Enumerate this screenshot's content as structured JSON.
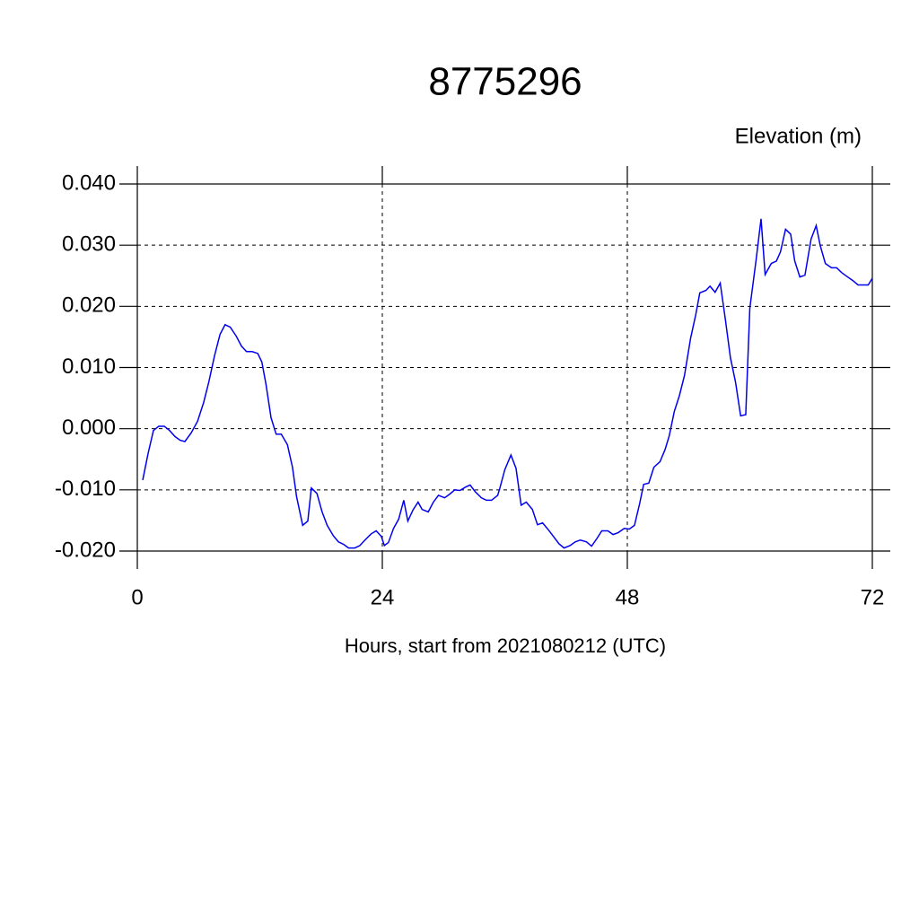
{
  "chart_data": {
    "type": "line",
    "title": "8775296",
    "subtitle": "Elevation (m)",
    "xlabel": "Hours, start from 2021080212 (UTC)",
    "xlim": [
      0,
      72
    ],
    "xticks": [
      0,
      24,
      48,
      72
    ],
    "ylim": [
      -0.02,
      0.04
    ],
    "yticks": [
      {
        "value": -0.02,
        "label": "-0.020"
      },
      {
        "value": -0.01,
        "label": "-0.010"
      },
      {
        "value": 0,
        "label": "0.000"
      },
      {
        "value": 0.01,
        "label": "0.010"
      },
      {
        "value": 0.02,
        "label": "0.020"
      },
      {
        "value": 0.03,
        "label": "0.030"
      },
      {
        "value": 0.04,
        "label": "0.040"
      }
    ],
    "grid": true,
    "series": [
      {
        "color": "#0000ee",
        "x": [
          0.53,
          1.05,
          1.58,
          2.1,
          2.64,
          3.16,
          3.7,
          4.2,
          4.66,
          5.27,
          5.9,
          6.5,
          7.0,
          7.56,
          8.1,
          8.6,
          9.1,
          9.7,
          10.2,
          10.7,
          11.25,
          11.8,
          12.2,
          12.6,
          13.1,
          13.6,
          14.1,
          14.7,
          15.2,
          15.6,
          16.2,
          16.7,
          17.05,
          17.6,
          18.1,
          18.6,
          19.2,
          19.7,
          20.2,
          20.7,
          21.3,
          21.8,
          22.3,
          22.9,
          23.4,
          23.9,
          24.2,
          24.6,
          25.1,
          25.6,
          26.1,
          26.5,
          27.0,
          27.5,
          27.9,
          28.5,
          29.0,
          29.5,
          30.1,
          30.6,
          31.1,
          31.6,
          32.2,
          32.6,
          33.1,
          33.7,
          34.2,
          34.7,
          35.3,
          35.5,
          36.0,
          36.6,
          37.1,
          37.6,
          38.1,
          38.7,
          39.2,
          39.7,
          40.3,
          40.8,
          41.3,
          41.8,
          42.4,
          42.9,
          43.4,
          44.0,
          44.5,
          45.0,
          45.5,
          46.1,
          46.6,
          47.1,
          47.7,
          48.2,
          48.7,
          49.2,
          49.6,
          50.1,
          50.6,
          51.2,
          51.7,
          52.1,
          52.6,
          53.1,
          53.6,
          54.2,
          54.7,
          55.1,
          55.7,
          56.1,
          56.6,
          57.1,
          57.6,
          58.1,
          58.6,
          59.1,
          59.6,
          60.0,
          60.6,
          61.1,
          61.5,
          62.1,
          62.6,
          63.0,
          63.5,
          64.0,
          64.4,
          64.9,
          65.4,
          66.0,
          66.5,
          66.9,
          67.4,
          68.0,
          68.5,
          69.0,
          69.5,
          70.1,
          70.6,
          71.1,
          71.6,
          72
        ],
        "values": [
          -0.0084,
          -0.0041,
          -0.0003,
          0.0004,
          0.0004,
          -0.0003,
          -0.0013,
          -0.0019,
          -0.0021,
          -0.0007,
          0.0012,
          0.0043,
          0.0076,
          0.0119,
          0.0154,
          0.017,
          0.0166,
          0.0151,
          0.0135,
          0.0126,
          0.0126,
          0.0123,
          0.0109,
          0.0073,
          0.0018,
          -0.0009,
          -0.0009,
          -0.0026,
          -0.0063,
          -0.0111,
          -0.0158,
          -0.0151,
          -0.0097,
          -0.0106,
          -0.0136,
          -0.0158,
          -0.0175,
          -0.0185,
          -0.0189,
          -0.0195,
          -0.0195,
          -0.0191,
          -0.0182,
          -0.0172,
          -0.0167,
          -0.0176,
          -0.0191,
          -0.0186,
          -0.0163,
          -0.0148,
          -0.0117,
          -0.0151,
          -0.0133,
          -0.012,
          -0.0132,
          -0.0136,
          -0.012,
          -0.0109,
          -0.0113,
          -0.0107,
          -0.01,
          -0.0101,
          -0.0095,
          -0.0092,
          -0.0103,
          -0.0113,
          -0.0117,
          -0.0117,
          -0.0109,
          -0.0098,
          -0.0067,
          -0.0043,
          -0.0065,
          -0.0125,
          -0.012,
          -0.0132,
          -0.0157,
          -0.0154,
          -0.0166,
          -0.0177,
          -0.0188,
          -0.0195,
          -0.0191,
          -0.0185,
          -0.0182,
          -0.0185,
          -0.0192,
          -0.018,
          -0.0167,
          -0.0167,
          -0.0173,
          -0.017,
          -0.0163,
          -0.0164,
          -0.0158,
          -0.0123,
          -0.0091,
          -0.0089,
          -0.0063,
          -0.0054,
          -0.0034,
          -0.0012,
          0.0028,
          0.0054,
          0.0087,
          0.0148,
          0.0186,
          0.0222,
          0.0226,
          0.0233,
          0.0223,
          0.0238,
          0.0179,
          0.0116,
          0.0076,
          0.0021,
          0.0023,
          0.0197,
          0.0274,
          0.0343,
          0.0252,
          0.027,
          0.0274,
          0.0289,
          0.0326,
          0.0318,
          0.0274,
          0.0248,
          0.0251,
          0.031,
          0.0332,
          0.0299,
          0.027,
          0.0263,
          0.0263,
          0.0255,
          0.0249,
          0.0242,
          0.0235,
          0.0235,
          0.0235,
          0.0246
        ]
      }
    ]
  }
}
